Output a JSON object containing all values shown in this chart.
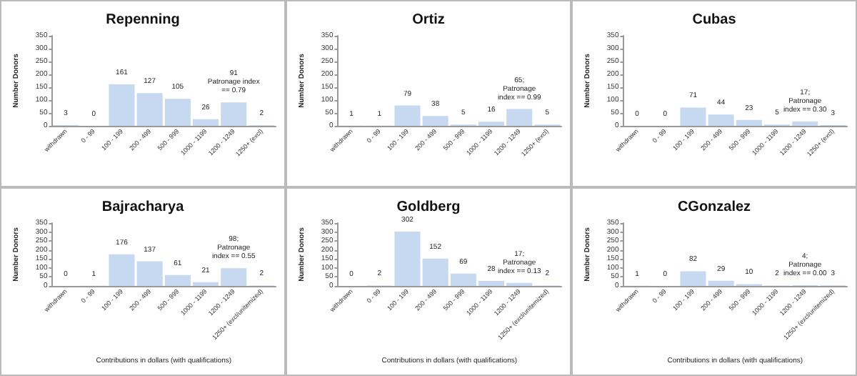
{
  "chart_data": [
    {
      "type": "bar",
      "title": "Repenning",
      "ylabel": "Number Donors",
      "categories": [
        "withdrawn",
        "0 - 99",
        "100 - 199",
        "200 - 499",
        "500 - 999",
        "1000 - 1199",
        "1200 - 1249",
        "1250+ (excl)"
      ],
      "values": [
        3,
        0,
        161,
        127,
        105,
        26,
        91,
        2
      ],
      "value_labels": [
        "3",
        "0",
        "161",
        "127",
        "105",
        "26",
        "91\nPatronage index\n== 0.79",
        "2"
      ],
      "color": "#c6d9f1",
      "ylim": [
        0,
        350
      ],
      "yticks": [
        0,
        50,
        100,
        150,
        200,
        250,
        300,
        350
      ]
    },
    {
      "type": "bar",
      "title": "Ortiz",
      "ylabel": "Number Donors",
      "categories": [
        "withdrawn",
        "0 - 99",
        "100 - 199",
        "200 - 499",
        "500 - 999",
        "1000 - 1199",
        "1200 - 1249",
        "1250+ (excl)"
      ],
      "values": [
        1,
        1,
        79,
        38,
        5,
        16,
        65,
        5
      ],
      "value_labels": [
        "1",
        "1",
        "79",
        "38",
        "5",
        "16",
        "65;\nPatronage\nindex == 0.99",
        "5"
      ],
      "color": "#c6d9f1",
      "ylim": [
        0,
        350
      ],
      "yticks": [
        0,
        50,
        100,
        150,
        200,
        250,
        300,
        350
      ]
    },
    {
      "type": "bar",
      "title": "Cubas",
      "ylabel": "Number Donors",
      "categories": [
        "withdrawn",
        "0 - 99",
        "100 - 199",
        "200 - 499",
        "500 - 999",
        "1000 - 1199",
        "1200 - 1249",
        "1250+ (excl)"
      ],
      "values": [
        0,
        0,
        71,
        44,
        23,
        5,
        17,
        3
      ],
      "value_labels": [
        "0",
        "0",
        "71",
        "44",
        "23",
        "5",
        "17;\nPatronage\nindex == 0.30",
        "3"
      ],
      "color": "#c6d9f1",
      "ylim": [
        0,
        350
      ],
      "yticks": [
        0,
        50,
        100,
        150,
        200,
        250,
        300,
        350
      ]
    },
    {
      "type": "bar",
      "title": "Bajracharya",
      "xlabel": "Contributions in dollars (with qualifications)",
      "ylabel": "Number Donors",
      "categories": [
        "withdrawn",
        "0 - 99",
        "100 - 199",
        "200 - 499",
        "500 - 999",
        "1000 - 1199",
        "1200 - 1249",
        "1250+ (excl/unitemized)"
      ],
      "values": [
        0,
        1,
        176,
        137,
        61,
        21,
        98,
        2
      ],
      "value_labels": [
        "0",
        "1",
        "176",
        "137",
        "61",
        "21",
        "98;\nPatronage\nindex == 0.55",
        "2"
      ],
      "color": "#c6d9f1",
      "ylim": [
        0,
        350
      ],
      "yticks": [
        0,
        50,
        100,
        150,
        200,
        250,
        300,
        350
      ]
    },
    {
      "type": "bar",
      "title": "Goldberg",
      "xlabel": "Contributions in dollars (with qualifications)",
      "ylabel": "Number Donors",
      "categories": [
        "withdrawn",
        "0 - 99",
        "100 - 199",
        "200 - 499",
        "500 - 999",
        "1000 - 1199",
        "1200 - 1249",
        "1250+ (excl/unitemized)"
      ],
      "values": [
        0,
        2,
        302,
        152,
        69,
        28,
        17,
        2
      ],
      "value_labels": [
        "0",
        "2",
        "302",
        "152",
        "69",
        "28",
        "17;\nPatronage\nindex == 0.13",
        "2"
      ],
      "color": "#c6d9f1",
      "ylim": [
        0,
        350
      ],
      "yticks": [
        0,
        50,
        100,
        150,
        200,
        250,
        300,
        350
      ]
    },
    {
      "type": "bar",
      "title": "CGonzalez",
      "xlabel": "Contributions in dollars (with qualifications)",
      "ylabel": "Number Donors",
      "categories": [
        "withdrawn",
        "0 - 99",
        "100 - 199",
        "200 - 499",
        "500 - 999",
        "1000 - 1199",
        "1200 - 1249",
        "1250+ (excl/unitemized)"
      ],
      "values": [
        1,
        0,
        82,
        29,
        10,
        2,
        4,
        3
      ],
      "value_labels": [
        "1",
        "0",
        "82",
        "29",
        "10",
        "2",
        "4;\nPatronage\nindex == 0.00",
        "3"
      ],
      "color": "#c6d9f1",
      "ylim": [
        0,
        350
      ],
      "yticks": [
        0,
        50,
        100,
        150,
        200,
        250,
        300,
        350
      ]
    }
  ]
}
